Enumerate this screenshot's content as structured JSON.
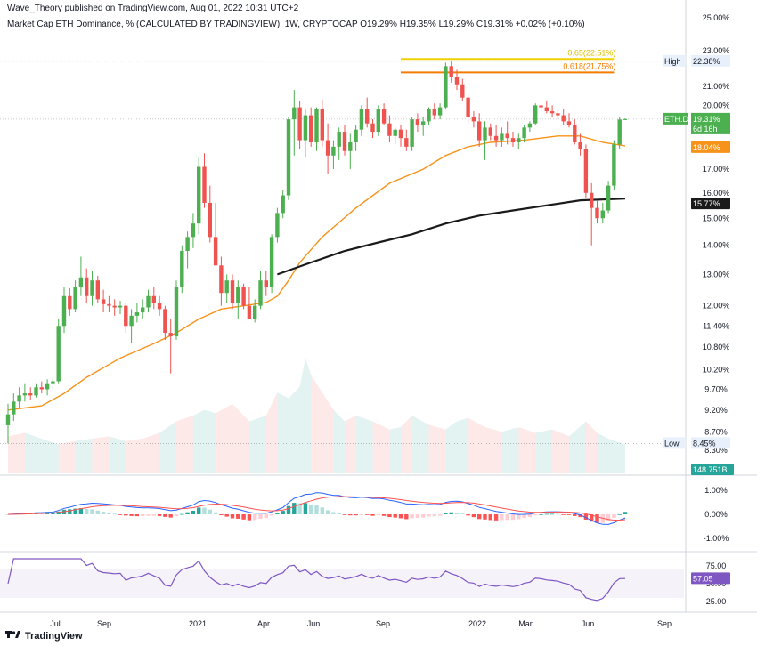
{
  "header": {
    "published": "Wave_Theory published on TradingView.com, Aug 01, 2022 10:31 UTC+2",
    "symbol_line": "Market Cap ETH Dominance, % (CALCULATED BY TRADINGVIEW), 1W, CRYPTOCAP  O19.29%  H19.35%  L19.29%  C19.31%  +0.02% (+0.10%)"
  },
  "footer": {
    "brand": "TradingView",
    "logo_icon": "tradingview-logo-icon"
  },
  "colors": {
    "up": "#4caf50",
    "down": "#ef5350",
    "ema_short": "#f7931a",
    "ema_long": "#1a1a1a",
    "fib_0_65": "#f0d000",
    "fib_0_618": "#f57c00",
    "rsi": "#7e57c2",
    "macd": "#2962ff",
    "signal": "#ff5252"
  },
  "chart_data": [
    {
      "type": "candlestick",
      "title": "Market Cap ETH Dominance, %",
      "timeframe": "1W",
      "y_scale": "log",
      "ylim": [
        7.9,
        25.0
      ],
      "y_ticks": [
        "25.00%",
        "23.00%",
        "21.00%",
        "20.00%",
        "19.00%",
        "18.00%",
        "17.00%",
        "16.00%",
        "15.00%",
        "14.00%",
        "13.00%",
        "12.00%",
        "11.40%",
        "10.80%",
        "10.20%",
        "9.70%",
        "9.20%",
        "8.70%",
        "8.30%",
        "7.90%"
      ],
      "x_ticks": [
        "Jul",
        "Sep",
        "2021",
        "Apr",
        "Jun",
        "Sep",
        "2022",
        "Mar",
        "Jun",
        "Sep"
      ],
      "price_labels": [
        {
          "name": "High",
          "text": "22.38%",
          "value": 22.38
        },
        {
          "name": "ETH.D",
          "text": "19.31%",
          "sub": "6d 16h",
          "value": 19.31
        },
        {
          "name": "EMA short",
          "text": "18.04%",
          "value": 18.04
        },
        {
          "name": "EMA long",
          "text": "15.77%",
          "value": 15.77
        },
        {
          "name": "Low",
          "text": "8.45%",
          "value": 8.45
        }
      ],
      "fib_levels": [
        {
          "label": "0.65(22.51%)",
          "value": 22.51
        },
        {
          "label": "0.618(21.75%)",
          "value": 21.75
        }
      ],
      "volume_label": "148.751B",
      "candles": [
        [
          8.85,
          9.35,
          8.45,
          9.1
        ],
        [
          9.1,
          9.6,
          8.95,
          9.4
        ],
        [
          9.4,
          9.75,
          9.25,
          9.55
        ],
        [
          9.55,
          9.85,
          9.4,
          9.6
        ],
        [
          9.6,
          9.75,
          9.45,
          9.55
        ],
        [
          9.55,
          9.85,
          9.5,
          9.75
        ],
        [
          9.75,
          9.9,
          9.6,
          9.7
        ],
        [
          9.7,
          9.95,
          9.55,
          9.85
        ],
        [
          9.85,
          10.0,
          9.7,
          9.9
        ],
        [
          9.9,
          11.6,
          9.85,
          11.4
        ],
        [
          11.4,
          12.6,
          11.2,
          12.3
        ],
        [
          12.3,
          12.55,
          11.7,
          11.9
        ],
        [
          11.9,
          12.8,
          11.8,
          12.6
        ],
        [
          12.6,
          13.6,
          12.3,
          12.9
        ],
        [
          12.9,
          13.2,
          12.1,
          12.3
        ],
        [
          12.3,
          13.1,
          12.0,
          12.8
        ],
        [
          12.8,
          12.95,
          12.1,
          12.2
        ],
        [
          12.2,
          12.5,
          11.8,
          12.05
        ],
        [
          12.05,
          12.3,
          11.8,
          12.0
        ],
        [
          12.0,
          12.2,
          11.7,
          11.95
        ],
        [
          11.95,
          12.15,
          11.75,
          12.0
        ],
        [
          12.0,
          12.1,
          11.2,
          11.4
        ],
        [
          11.4,
          11.9,
          10.9,
          11.7
        ],
        [
          11.7,
          12.1,
          11.5,
          11.8
        ],
        [
          11.8,
          12.2,
          11.6,
          11.95
        ],
        [
          11.95,
          12.5,
          11.8,
          12.3
        ],
        [
          12.3,
          12.6,
          11.9,
          12.1
        ],
        [
          12.1,
          12.3,
          11.7,
          11.9
        ],
        [
          11.9,
          12.0,
          11.0,
          11.2
        ],
        [
          11.2,
          11.6,
          10.1,
          11.1
        ],
        [
          11.1,
          12.8,
          11.0,
          12.6
        ],
        [
          12.6,
          14.0,
          12.4,
          13.8
        ],
        [
          13.8,
          14.5,
          13.2,
          14.3
        ],
        [
          14.3,
          15.2,
          13.9,
          14.8
        ],
        [
          14.8,
          17.5,
          14.4,
          17.1
        ],
        [
          17.1,
          17.7,
          15.4,
          15.6
        ],
        [
          15.6,
          16.3,
          14.1,
          14.3
        ],
        [
          14.3,
          15.6,
          13.3,
          13.3
        ],
        [
          13.3,
          13.6,
          12.0,
          12.4
        ],
        [
          12.4,
          13.0,
          12.1,
          12.8
        ],
        [
          12.8,
          13.0,
          11.9,
          12.1
        ],
        [
          12.1,
          12.8,
          11.6,
          12.6
        ],
        [
          12.6,
          12.7,
          11.9,
          12.0
        ],
        [
          12.0,
          12.6,
          11.6,
          11.6
        ],
        [
          11.6,
          12.2,
          11.5,
          12.0
        ],
        [
          12.0,
          13.1,
          11.9,
          12.8
        ],
        [
          12.8,
          13.1,
          12.3,
          12.6
        ],
        [
          12.6,
          14.4,
          12.4,
          14.3
        ],
        [
          14.3,
          15.4,
          14.1,
          15.2
        ],
        [
          15.2,
          16.1,
          15.0,
          15.9
        ],
        [
          15.9,
          19.4,
          15.7,
          19.3
        ],
        [
          19.3,
          20.8,
          17.6,
          19.9
        ],
        [
          19.9,
          20.2,
          17.9,
          18.3
        ],
        [
          18.3,
          19.8,
          17.5,
          19.5
        ],
        [
          19.5,
          19.9,
          18.0,
          18.2
        ],
        [
          18.2,
          19.9,
          17.8,
          19.8
        ],
        [
          19.8,
          20.3,
          18.0,
          18.3
        ],
        [
          18.3,
          19.1,
          16.8,
          17.6
        ],
        [
          17.6,
          18.3,
          17.0,
          18.0
        ],
        [
          18.0,
          18.9,
          17.4,
          18.7
        ],
        [
          18.7,
          19.0,
          17.6,
          17.8
        ],
        [
          17.8,
          18.6,
          17.0,
          18.2
        ],
        [
          18.2,
          19.0,
          17.8,
          18.8
        ],
        [
          18.8,
          20.0,
          18.5,
          19.8
        ],
        [
          19.8,
          20.4,
          18.9,
          19.1
        ],
        [
          19.1,
          19.3,
          18.4,
          18.7
        ],
        [
          18.7,
          20.0,
          18.5,
          19.8
        ],
        [
          19.8,
          20.1,
          19.0,
          19.1
        ],
        [
          19.1,
          19.5,
          18.2,
          18.5
        ],
        [
          18.5,
          18.9,
          18.1,
          18.8
        ],
        [
          18.8,
          19.0,
          18.0,
          18.4
        ],
        [
          18.4,
          18.8,
          17.8,
          18.0
        ],
        [
          18.0,
          19.4,
          17.8,
          19.3
        ],
        [
          19.3,
          19.6,
          18.7,
          19.0
        ],
        [
          19.0,
          19.4,
          18.5,
          19.2
        ],
        [
          19.2,
          19.9,
          19.0,
          19.8
        ],
        [
          19.8,
          20.1,
          19.3,
          19.5
        ],
        [
          19.5,
          20.1,
          19.3,
          19.9
        ],
        [
          19.9,
          22.3,
          19.8,
          22.1
        ],
        [
          22.1,
          22.38,
          21.2,
          21.5
        ],
        [
          21.5,
          21.9,
          20.8,
          21.1
        ],
        [
          21.1,
          21.4,
          20.2,
          20.4
        ],
        [
          20.4,
          20.6,
          19.1,
          19.4
        ],
        [
          19.4,
          19.7,
          18.9,
          19.2
        ],
        [
          19.2,
          19.6,
          18.0,
          18.3
        ],
        [
          18.3,
          19.2,
          17.4,
          18.9
        ],
        [
          18.9,
          19.1,
          18.3,
          18.5
        ],
        [
          18.5,
          19.0,
          18.0,
          18.3
        ],
        [
          18.3,
          18.9,
          18.0,
          18.6
        ],
        [
          18.6,
          19.2,
          18.1,
          18.4
        ],
        [
          18.4,
          18.7,
          18.0,
          18.2
        ],
        [
          18.2,
          18.6,
          17.9,
          18.4
        ],
        [
          18.4,
          19.0,
          18.2,
          18.9
        ],
        [
          18.9,
          19.2,
          18.7,
          19.1
        ],
        [
          19.1,
          20.1,
          19.0,
          20.0
        ],
        [
          20.0,
          20.4,
          19.7,
          19.9
        ],
        [
          19.9,
          20.2,
          19.6,
          19.7
        ],
        [
          19.7,
          20.0,
          19.4,
          19.6
        ],
        [
          19.6,
          19.9,
          19.3,
          19.5
        ],
        [
          19.5,
          19.8,
          19.0,
          19.2
        ],
        [
          19.2,
          19.6,
          18.9,
          19.0
        ],
        [
          19.0,
          19.3,
          18.1,
          18.2
        ],
        [
          18.2,
          18.6,
          17.6,
          17.9
        ],
        [
          17.9,
          18.1,
          15.8,
          16.0
        ],
        [
          16.0,
          16.4,
          14.0,
          15.4
        ],
        [
          15.4,
          15.7,
          14.8,
          15.0
        ],
        [
          15.0,
          15.6,
          14.8,
          15.3
        ],
        [
          15.3,
          16.5,
          15.2,
          16.3
        ],
        [
          16.3,
          18.3,
          16.1,
          18.1
        ],
        [
          18.1,
          19.4,
          17.9,
          19.29
        ],
        [
          19.29,
          19.35,
          19.29,
          19.31
        ]
      ],
      "ema_short": [
        [
          0,
          9.2
        ],
        [
          6,
          9.3
        ],
        [
          10,
          9.6
        ],
        [
          14,
          10.0
        ],
        [
          20,
          10.5
        ],
        [
          26,
          10.9
        ],
        [
          30,
          11.2
        ],
        [
          34,
          11.6
        ],
        [
          38,
          11.9
        ],
        [
          42,
          12.0
        ],
        [
          46,
          12.1
        ],
        [
          48,
          12.3
        ],
        [
          50,
          12.8
        ],
        [
          52,
          13.4
        ],
        [
          56,
          14.3
        ],
        [
          62,
          15.4
        ],
        [
          68,
          16.4
        ],
        [
          74,
          17.0
        ],
        [
          78,
          17.6
        ],
        [
          82,
          18.0
        ],
        [
          86,
          18.2
        ],
        [
          92,
          18.3
        ],
        [
          98,
          18.5
        ],
        [
          102,
          18.5
        ],
        [
          106,
          18.2
        ],
        [
          110,
          18.04
        ]
      ],
      "ema_long": [
        [
          48,
          13.0
        ],
        [
          54,
          13.4
        ],
        [
          60,
          13.8
        ],
        [
          66,
          14.1
        ],
        [
          72,
          14.4
        ],
        [
          78,
          14.8
        ],
        [
          84,
          15.1
        ],
        [
          90,
          15.3
        ],
        [
          96,
          15.5
        ],
        [
          102,
          15.7
        ],
        [
          110,
          15.77
        ]
      ],
      "volume": [
        [
          0,
          0.32,
          0
        ],
        [
          3,
          0.35,
          1
        ],
        [
          6,
          0.3,
          1
        ],
        [
          9,
          0.25,
          0
        ],
        [
          12,
          0.28,
          1
        ],
        [
          15,
          0.3,
          0
        ],
        [
          18,
          0.32,
          1
        ],
        [
          21,
          0.28,
          0
        ],
        [
          24,
          0.3,
          0
        ],
        [
          27,
          0.35,
          1
        ],
        [
          30,
          0.45,
          0
        ],
        [
          33,
          0.5,
          1
        ],
        [
          35,
          0.55,
          1
        ],
        [
          37,
          0.52,
          0
        ],
        [
          40,
          0.6,
          0
        ],
        [
          43,
          0.45,
          1
        ],
        [
          46,
          0.5,
          0
        ],
        [
          48,
          0.7,
          1
        ],
        [
          50,
          0.65,
          1
        ],
        [
          52,
          0.75,
          1
        ],
        [
          53,
          1.0,
          1
        ],
        [
          54,
          0.85,
          0
        ],
        [
          56,
          0.7,
          0
        ],
        [
          58,
          0.55,
          1
        ],
        [
          60,
          0.45,
          0
        ],
        [
          62,
          0.5,
          1
        ],
        [
          65,
          0.45,
          0
        ],
        [
          68,
          0.38,
          1
        ],
        [
          70,
          0.4,
          0
        ],
        [
          72,
          0.5,
          1
        ],
        [
          75,
          0.42,
          0
        ],
        [
          78,
          0.38,
          1
        ],
        [
          80,
          0.45,
          1
        ],
        [
          82,
          0.48,
          0
        ],
        [
          85,
          0.4,
          0
        ],
        [
          88,
          0.36,
          1
        ],
        [
          91,
          0.4,
          0
        ],
        [
          94,
          0.35,
          1
        ],
        [
          97,
          0.38,
          0
        ],
        [
          100,
          0.32,
          1
        ],
        [
          103,
          0.45,
          0
        ],
        [
          105,
          0.35,
          1
        ],
        [
          107,
          0.3,
          1
        ],
        [
          110,
          0.25,
          1
        ]
      ],
      "macd_ticks": [
        "1.00%",
        "0.00%",
        "-1.00%"
      ],
      "rsi_ticks": [
        "75.00",
        "50.00",
        "25.00"
      ],
      "rsi_value_label": "57.05"
    }
  ]
}
